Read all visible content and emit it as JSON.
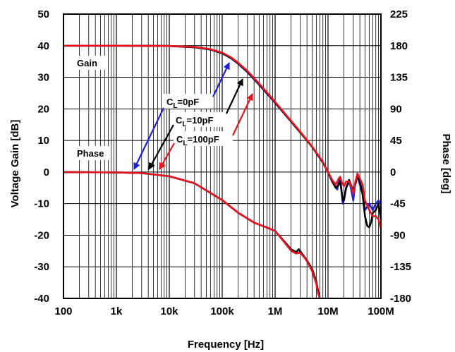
{
  "chart_data": {
    "type": "line",
    "xlabel": "Frequency [Hz]",
    "ylabel": "Voltage Gain [dB]",
    "ylabel_right": "Phase [deg]",
    "x_scale": "log",
    "xlim": [
      100,
      100000000
    ],
    "ylim": [
      -40,
      50
    ],
    "ylim_right": [
      -180,
      225
    ],
    "grid": true,
    "x_ticks": [
      {
        "value": 100,
        "label": "100"
      },
      {
        "value": 1000,
        "label": "1k"
      },
      {
        "value": 10000,
        "label": "10k"
      },
      {
        "value": 100000,
        "label": "100k"
      },
      {
        "value": 1000000,
        "label": "1M"
      },
      {
        "value": 10000000,
        "label": "10M"
      },
      {
        "value": 100000000,
        "label": "100M"
      }
    ],
    "y_ticks": [
      "50",
      "40",
      "30",
      "20",
      "10",
      "0",
      "-10",
      "-20",
      "-30",
      "-40"
    ],
    "y_ticks_right": [
      "225",
      "180",
      "135",
      "90",
      "45",
      "0",
      "-45",
      "-90",
      "-135",
      "-180"
    ],
    "annotations": {
      "gain": "Gain",
      "phase": "Phase",
      "cl0": {
        "base": "C",
        "sub": "L",
        "rest": "=0pF"
      },
      "cl10": {
        "base": "C",
        "sub": "L",
        "rest": "=10pF"
      },
      "cl100": {
        "base": "C",
        "sub": "L",
        "rest": "=100pF"
      }
    },
    "series": [
      {
        "name": "CL=0pF",
        "color": "#1f1fd6",
        "axis": "left",
        "points": [
          [
            100,
            40
          ],
          [
            1000,
            40
          ],
          [
            10000,
            39.9
          ],
          [
            30000,
            39.5
          ],
          [
            60000,
            38.8
          ],
          [
            100000,
            37.6
          ],
          [
            150000,
            35.9
          ],
          [
            200000,
            34.3
          ],
          [
            300000,
            31.6
          ],
          [
            500000,
            27.6
          ],
          [
            1000000,
            21.9
          ],
          [
            2000000,
            16
          ],
          [
            3000000,
            12.5
          ],
          [
            5000000,
            8
          ],
          [
            8000000,
            3
          ],
          [
            10000000,
            0
          ],
          [
            12000000,
            -3
          ],
          [
            14000000,
            -5
          ],
          [
            15000000,
            -5.5
          ],
          [
            16000000,
            -3
          ],
          [
            17000000,
            -2
          ],
          [
            18000000,
            -6
          ],
          [
            19000000,
            -10
          ],
          [
            20000000,
            -8
          ],
          [
            22000000,
            -5
          ],
          [
            25000000,
            -3
          ],
          [
            27000000,
            -5
          ],
          [
            30000000,
            -9
          ],
          [
            33000000,
            -3
          ],
          [
            36000000,
            -1
          ],
          [
            40000000,
            -4
          ],
          [
            45000000,
            -7
          ],
          [
            50000000,
            -12
          ],
          [
            60000000,
            -10
          ],
          [
            70000000,
            -12
          ],
          [
            80000000,
            -10
          ],
          [
            90000000,
            -9
          ],
          [
            100000000,
            -10
          ]
        ]
      },
      {
        "name": "CL=10pF",
        "color": "#000000",
        "axis": "left",
        "points": [
          [
            100,
            40
          ],
          [
            1000,
            40
          ],
          [
            10000,
            39.9
          ],
          [
            30000,
            39.5
          ],
          [
            60000,
            38.8
          ],
          [
            100000,
            37.6
          ],
          [
            150000,
            36
          ],
          [
            200000,
            34.4
          ],
          [
            300000,
            31.8
          ],
          [
            500000,
            27.8
          ],
          [
            1000000,
            22
          ],
          [
            2000000,
            16
          ],
          [
            3000000,
            12.5
          ],
          [
            5000000,
            8
          ],
          [
            8000000,
            3
          ],
          [
            10000000,
            0
          ],
          [
            12000000,
            -3
          ],
          [
            14000000,
            -5
          ],
          [
            16000000,
            -4
          ],
          [
            17000000,
            -3
          ],
          [
            18000000,
            -6
          ],
          [
            19000000,
            -9
          ],
          [
            20000000,
            -9
          ],
          [
            22000000,
            -5
          ],
          [
            25000000,
            -2.5
          ],
          [
            27000000,
            -4
          ],
          [
            30000000,
            -6
          ],
          [
            34000000,
            -3
          ],
          [
            36000000,
            -0.5
          ],
          [
            40000000,
            -3
          ],
          [
            45000000,
            -7
          ],
          [
            50000000,
            -14
          ],
          [
            55000000,
            -17
          ],
          [
            60000000,
            -17.5
          ],
          [
            65000000,
            -16
          ],
          [
            70000000,
            -13
          ],
          [
            80000000,
            -12
          ],
          [
            90000000,
            -10
          ],
          [
            100000000,
            -15
          ]
        ]
      },
      {
        "name": "CL=100pF",
        "color": "#e8141e",
        "axis": "left",
        "points": [
          [
            100,
            40
          ],
          [
            1000,
            40
          ],
          [
            10000,
            39.9
          ],
          [
            30000,
            39.6
          ],
          [
            60000,
            38.9
          ],
          [
            100000,
            37.8
          ],
          [
            150000,
            36.2
          ],
          [
            200000,
            34.6
          ],
          [
            300000,
            32
          ],
          [
            500000,
            28
          ],
          [
            1000000,
            22.2
          ],
          [
            2000000,
            16.2
          ],
          [
            3000000,
            12.7
          ],
          [
            5000000,
            8.1
          ],
          [
            8000000,
            3.2
          ],
          [
            10000000,
            0
          ],
          [
            12000000,
            -2.5
          ],
          [
            14000000,
            -4
          ],
          [
            16000000,
            -2
          ],
          [
            17000000,
            -1.5
          ],
          [
            18000000,
            -3
          ],
          [
            20000000,
            -4.5
          ],
          [
            22000000,
            -3
          ],
          [
            25000000,
            -3
          ],
          [
            28000000,
            -5
          ],
          [
            30000000,
            -7
          ],
          [
            33000000,
            -3
          ],
          [
            36000000,
            -0.5
          ],
          [
            40000000,
            -2
          ],
          [
            45000000,
            -4
          ],
          [
            50000000,
            -9
          ],
          [
            60000000,
            -12
          ],
          [
            70000000,
            -14
          ],
          [
            80000000,
            -14
          ],
          [
            90000000,
            -15
          ],
          [
            100000000,
            -18
          ]
        ]
      },
      {
        "name": "Phase CL=0pF",
        "color": "#1f1fd6",
        "axis": "right",
        "points": [
          [
            100,
            0
          ],
          [
            1000,
            -0.5
          ],
          [
            3000,
            -1.5
          ],
          [
            10000,
            -6
          ],
          [
            30000,
            -16
          ],
          [
            100000,
            -40
          ],
          [
            200000,
            -58
          ],
          [
            400000,
            -72
          ],
          [
            700000,
            -79
          ],
          [
            1000000,
            -84
          ],
          [
            1500000,
            -100
          ],
          [
            2000000,
            -112
          ],
          [
            2500000,
            -116
          ],
          [
            3000000,
            -114
          ],
          [
            3500000,
            -120
          ],
          [
            4000000,
            -126
          ],
          [
            5000000,
            -140
          ],
          [
            6000000,
            -158
          ],
          [
            6500000,
            -172
          ],
          [
            7000000,
            -180
          ]
        ]
      },
      {
        "name": "Phase CL=10pF",
        "color": "#000000",
        "axis": "right",
        "points": [
          [
            100,
            0
          ],
          [
            1000,
            -0.5
          ],
          [
            3000,
            -1.5
          ],
          [
            10000,
            -6
          ],
          [
            30000,
            -16
          ],
          [
            100000,
            -40
          ],
          [
            200000,
            -58
          ],
          [
            400000,
            -72
          ],
          [
            700000,
            -79
          ],
          [
            1000000,
            -84
          ],
          [
            1500000,
            -99
          ],
          [
            2000000,
            -110
          ],
          [
            2500000,
            -114
          ],
          [
            2800000,
            -110
          ],
          [
            3200000,
            -116
          ],
          [
            4000000,
            -126
          ],
          [
            5000000,
            -138
          ],
          [
            6000000,
            -156
          ],
          [
            6500000,
            -170
          ],
          [
            7000000,
            -180
          ]
        ]
      },
      {
        "name": "Phase CL=100pF",
        "color": "#e8141e",
        "axis": "right",
        "points": [
          [
            100,
            0
          ],
          [
            1000,
            -0.5
          ],
          [
            3000,
            -1.5
          ],
          [
            10000,
            -6
          ],
          [
            30000,
            -16
          ],
          [
            100000,
            -40
          ],
          [
            200000,
            -58
          ],
          [
            400000,
            -72
          ],
          [
            700000,
            -79
          ],
          [
            1000000,
            -84
          ],
          [
            1500000,
            -100
          ],
          [
            2000000,
            -112
          ],
          [
            2500000,
            -116
          ],
          [
            3000000,
            -115
          ],
          [
            3500000,
            -121
          ],
          [
            4000000,
            -127
          ],
          [
            5000000,
            -141
          ],
          [
            6000000,
            -159
          ],
          [
            6500000,
            -173
          ],
          [
            7000000,
            -180
          ]
        ]
      }
    ]
  }
}
